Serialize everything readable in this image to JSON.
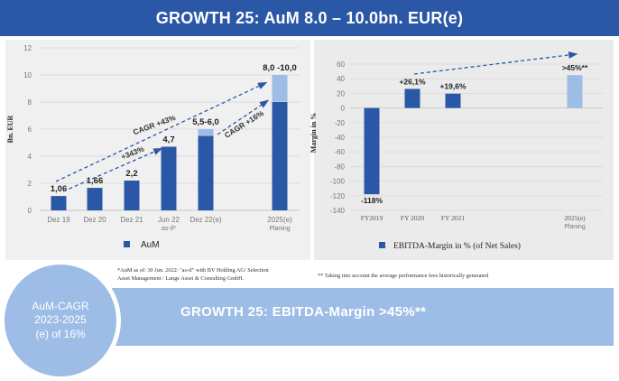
{
  "header": {
    "title": "GROWTH 25: AuM 8.0 – 10.0bn. EUR(e)"
  },
  "circle": {
    "line1": "AuM-CAGR",
    "line2": "2023-2025",
    "line3": "(e) of 16%"
  },
  "bottom": {
    "title": "GROWTH 25: EBITDA-Margin >45%**"
  },
  "footnotes": {
    "left_line1": "*AuM as of: 30 Jun. 2022: \"as-if\" with BV Holding AG/ Selection",
    "left_line2": "Asset Management / Lange Asset & Consulting GmbH.",
    "right": "** Taking into account the average performance fees historically generated"
  },
  "colors": {
    "dark_blue": "#2b58a6",
    "light_blue": "#9dbde6",
    "header": "#2b58a6"
  },
  "chart_data": [
    {
      "type": "bar",
      "ylabel": "Bn. EUR",
      "ylim": [
        0,
        12
      ],
      "yticks": [
        0,
        2,
        4,
        6,
        8,
        10,
        12
      ],
      "categories": [
        "Dez 19",
        "Dez 20",
        "Dez 21",
        "Jun 22",
        "Dez 22(e)",
        "2025(e)"
      ],
      "category_sublabels": [
        "",
        "",
        "",
        "as-if*",
        "",
        "Planing"
      ],
      "values": [
        1.06,
        1.66,
        2.2,
        4.7,
        5.5,
        8.0
      ],
      "range_upper": [
        null,
        null,
        null,
        null,
        6.0,
        10.0
      ],
      "data_labels": [
        "1,06",
        "1,66",
        "2,2",
        "4,7",
        "5,5-6,0",
        "8,0 -10,0"
      ],
      "legend": "AuM",
      "annotations": [
        "CAGR +43%",
        "+343%",
        "CAGR +16%"
      ],
      "grid": true
    },
    {
      "type": "bar",
      "ylabel": "Margin in %",
      "ylim": [
        -140,
        70
      ],
      "yticks": [
        60,
        40,
        20,
        0,
        -20,
        -40,
        -60,
        -80,
        -100,
        -120,
        -140
      ],
      "categories": [
        "FY2019",
        "FY 2020",
        "FY 2021",
        "2025(e)"
      ],
      "category_sublabels": [
        "",
        "",
        "",
        "Planing"
      ],
      "values": [
        -118,
        26.1,
        19.6,
        45
      ],
      "data_labels": [
        "-118%",
        "+26,1%",
        "+19,6%",
        ">45%**"
      ],
      "legend": "EBITDA-Margin in % (of Net Sales)",
      "grid": true
    }
  ]
}
